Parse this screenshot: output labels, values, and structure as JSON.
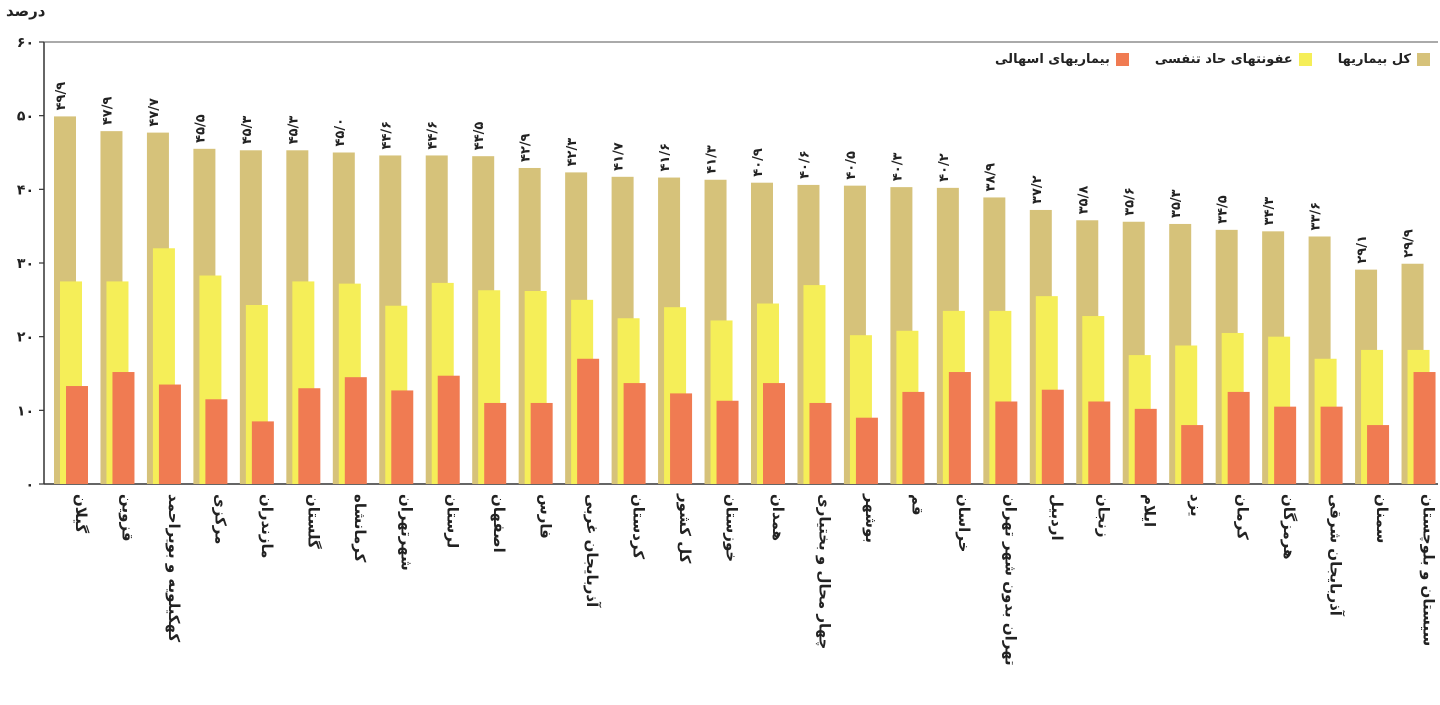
{
  "chart_data": {
    "type": "bar",
    "ylabel": "درصد",
    "ylim": [
      0,
      60
    ],
    "yticks": [
      "۰",
      "۱۰",
      "۲۰",
      "۳۰",
      "۴۰",
      "۵۰",
      "۶۰"
    ],
    "grid": false,
    "legend_position": "top-right",
    "categories": [
      "گیلان",
      "قزوین",
      "کهکیلویه و بویراحمد",
      "مرکزی",
      "مازندران",
      "گلستان",
      "کرمانشاه",
      "شهرتهران",
      "لرستان",
      "اصفهان",
      "فارس",
      "آذربایجان غربی",
      "کردستان",
      "کل کشور",
      "خوزستان",
      "همدان",
      "چهار محال و بختیاری",
      "بوشهر",
      "قم",
      "خراسان",
      "تهران بدون شهر تهران",
      "اردبیل",
      "زنجان",
      "ایلام",
      "یزد",
      "کرمان",
      "هرمزگان",
      "آذربایجان شرقی",
      "سمنان",
      "سیستان و بلوچستان"
    ],
    "data_labels": [
      "۴۹/۹",
      "۴۷/۹",
      "۴۷/۷",
      "۴۵/۵",
      "۴۵/۳",
      "۴۵/۳",
      "۴۵/۰",
      "۴۴/۶",
      "۴۴/۶",
      "۴۴/۵",
      "۴۲/۹",
      "۴۲/۳",
      "۴۱/۷",
      "۴۱/۶",
      "۴۱/۳",
      "۴۰/۹",
      "۴۰/۶",
      "۴۰/۵",
      "۴۰/۳",
      "۴۰/۲",
      "۳۸/۹",
      "۳۷/۲",
      "۳۵/۸",
      "۳۵/۶",
      "۳۵/۳",
      "۳۴/۵",
      "۳۴/۳",
      "۳۳/۶",
      "۲۹/۱",
      "۲۹/۹"
    ],
    "series": [
      {
        "name": "کل بیماریها",
        "color": "#d6c27a",
        "values": [
          49.9,
          47.9,
          47.7,
          45.5,
          45.3,
          45.3,
          45.0,
          44.6,
          44.6,
          44.5,
          42.9,
          42.3,
          41.7,
          41.6,
          41.3,
          40.9,
          40.6,
          40.5,
          40.3,
          40.2,
          38.9,
          37.2,
          35.8,
          35.6,
          35.3,
          34.5,
          34.3,
          33.6,
          29.1,
          29.9
        ]
      },
      {
        "name": "عفونتهای حاد تنفسی",
        "color": "#f5ee58",
        "values": [
          27.5,
          27.5,
          32,
          28.3,
          24.3,
          27.5,
          27.2,
          24.2,
          27.3,
          26.3,
          26.2,
          25.0,
          22.5,
          24.0,
          22.2,
          24.5,
          27.0,
          20.2,
          20.8,
          23.5,
          23.5,
          25.5,
          22.8,
          17.5,
          18.8,
          20.5,
          20.0,
          17.0,
          18.2,
          18.2
        ]
      },
      {
        "name": "بیماریهای اسهالی",
        "color": "#f07b52",
        "values": [
          13.3,
          15.2,
          13.5,
          11.5,
          8.5,
          13.0,
          14.5,
          12.7,
          14.7,
          11.0,
          11.0,
          17.0,
          13.7,
          12.3,
          11.3,
          13.7,
          11.0,
          9.0,
          12.5,
          15.2,
          11.2,
          12.8,
          11.2,
          10.2,
          8.0,
          12.5,
          10.5,
          10.5,
          8.0,
          15.2
        ]
      }
    ]
  }
}
